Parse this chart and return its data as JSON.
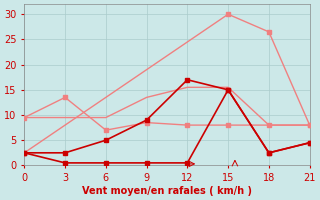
{
  "xlabel": "Vent moyen/en rafales ( km/h )",
  "xlabel_color": "#cc0000",
  "bg_color": "#cce8e8",
  "grid_color": "#aacccc",
  "xlim": [
    0,
    21
  ],
  "ylim": [
    0,
    32
  ],
  "xticks": [
    0,
    3,
    6,
    9,
    12,
    15,
    18,
    21
  ],
  "yticks": [
    0,
    5,
    10,
    15,
    20,
    25,
    30
  ],
  "lines": [
    {
      "x": [
        0,
        3,
        6,
        9,
        12,
        15,
        18,
        21
      ],
      "y": [
        2.5,
        0.5,
        0.5,
        0.5,
        0.5,
        15.0,
        2.5,
        4.5
      ],
      "color": "#cc0000",
      "linewidth": 1.2,
      "marker": "s",
      "markersize": 2.5,
      "zorder": 5
    },
    {
      "x": [
        0,
        3,
        6,
        9,
        12,
        15,
        18,
        21
      ],
      "y": [
        2.5,
        2.5,
        5.0,
        9.0,
        17.0,
        15.0,
        2.5,
        4.5
      ],
      "color": "#cc0000",
      "linewidth": 1.2,
      "marker": "s",
      "markersize": 2.5,
      "zorder": 5
    },
    {
      "x": [
        0,
        3,
        6,
        9,
        12,
        15,
        18,
        21
      ],
      "y": [
        9.5,
        13.5,
        7.0,
        8.5,
        8.0,
        8.0,
        8.0,
        8.0
      ],
      "color": "#f08080",
      "linewidth": 1.0,
      "marker": "s",
      "markersize": 2.5,
      "zorder": 3
    },
    {
      "x": [
        0,
        3,
        6,
        9,
        12,
        15,
        18,
        21
      ],
      "y": [
        9.5,
        9.5,
        9.5,
        13.5,
        15.5,
        15.5,
        8.0,
        8.0
      ],
      "color": "#f08080",
      "linewidth": 1.0,
      "marker": null,
      "markersize": 0,
      "zorder": 3
    },
    {
      "x": [
        0,
        15,
        18,
        21
      ],
      "y": [
        2.5,
        30.0,
        26.5,
        8.0
      ],
      "color": "#f08080",
      "linewidth": 1.0,
      "marker": "s",
      "markersize": 2.5,
      "zorder": 3
    }
  ]
}
